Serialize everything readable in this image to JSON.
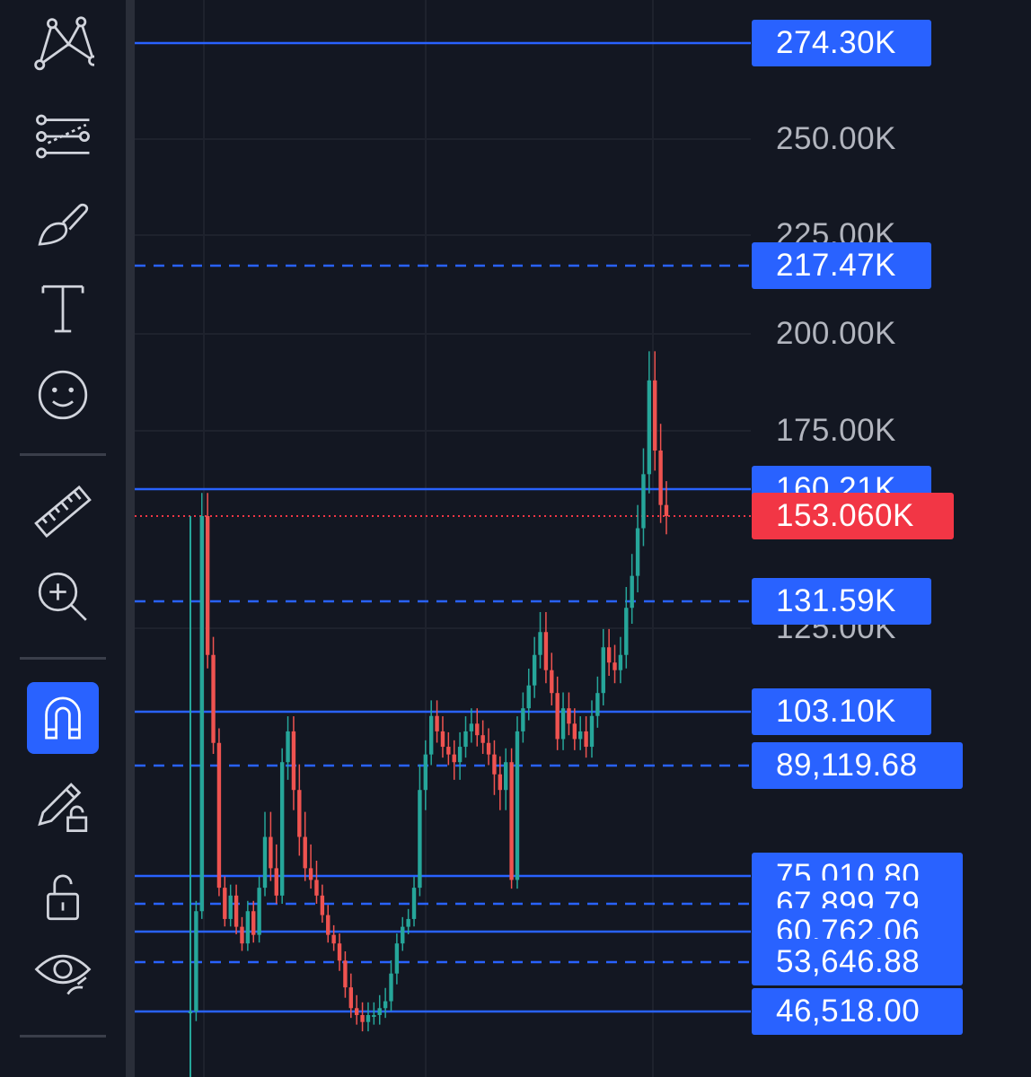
{
  "toolbar": {
    "tools": [
      {
        "name": "pattern-tool-icon"
      },
      {
        "name": "trend-line-tool-icon"
      },
      {
        "name": "brush-tool-icon"
      },
      {
        "name": "text-tool-icon"
      },
      {
        "name": "emoji-tool-icon"
      },
      {
        "name": "ruler-tool-icon"
      },
      {
        "name": "zoom-in-icon"
      },
      {
        "name": "magnet-icon",
        "active": true
      },
      {
        "name": "lock-drawing-icon"
      },
      {
        "name": "lock-icon"
      },
      {
        "name": "hide-drawings-icon"
      }
    ]
  },
  "colors": {
    "background": "#131722",
    "up": "#26a69a",
    "down": "#ef5350",
    "level_line": "#2962ff",
    "current_price": "#f23645",
    "tick_text": "#b2b5be"
  },
  "chart_data": {
    "type": "candlestick",
    "y_axis_ticks": [
      "125.00K",
      "175.00K",
      "200.00K",
      "225.00K",
      "250.00K"
    ],
    "ylim": [
      34000,
      285000
    ],
    "grid": true,
    "current_price": {
      "value": 153060,
      "label": "153.060K"
    },
    "levels": [
      {
        "value": 274300,
        "label": "274.30K",
        "style": "solid"
      },
      {
        "value": 217470,
        "label": "217.47K",
        "style": "dashed"
      },
      {
        "value": 160210,
        "label": "160.21K",
        "style": "solid"
      },
      {
        "value": 131590,
        "label": "131.59K",
        "style": "dashed"
      },
      {
        "value": 103100,
        "label": "103.10K",
        "style": "solid"
      },
      {
        "value": 89119.68,
        "label": "89,119.68",
        "style": "dashed"
      },
      {
        "value": 75010.8,
        "label": "75,010.80",
        "style": "solid"
      },
      {
        "value": 67899.79,
        "label": "67,899.79",
        "style": "dashed"
      },
      {
        "value": 60762.06,
        "label": "60,762.06",
        "style": "solid"
      },
      {
        "value": 53646.88,
        "label": "53,646.88",
        "style": "dashed"
      },
      {
        "value": 46518.0,
        "label": "46,518.00",
        "style": "solid"
      }
    ],
    "series_close": [
      46518,
      66000,
      153060,
      118000,
      95000,
      72000,
      64000,
      70000,
      62000,
      58000,
      66000,
      60000,
      72000,
      80000,
      76000,
      70000,
      90000,
      98000,
      86000,
      80000,
      76000,
      74000,
      70000,
      65000,
      60000,
      58000,
      54000,
      50000,
      47000,
      46000,
      45000,
      46000,
      46000,
      47000,
      48000,
      52000,
      58000,
      62000,
      64000,
      72000,
      86000,
      92000,
      102000,
      98000,
      94000,
      92000,
      90000,
      94000,
      98000,
      100000,
      97000,
      95000,
      92000,
      88000,
      86000,
      90000,
      74000,
      98000,
      104000,
      110000,
      118000,
      124000,
      114000,
      108000,
      96000,
      104000,
      100000,
      96000,
      98000,
      94000,
      102000,
      108000,
      120000,
      116000,
      114000,
      118000,
      130000,
      138000,
      150000,
      164000,
      188000,
      170000,
      156000,
      153060
    ]
  }
}
